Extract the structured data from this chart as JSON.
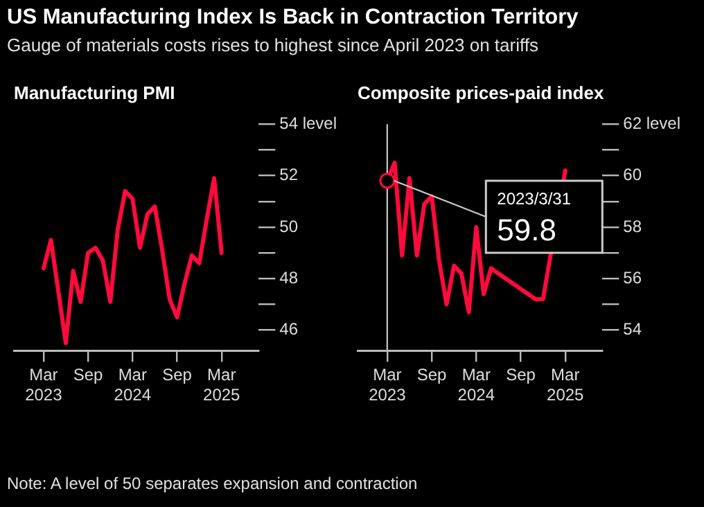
{
  "chart_data": [
    {
      "type": "other",
      "title": "US Manufacturing Index Is Back in Contraction Territory",
      "subtitle": "Gauge of materials costs rises to highest since April 2023 on tariffs"
    },
    {
      "type": "line",
      "title": "Manufacturing PMI",
      "x": [
        "2023-03",
        "2023-04",
        "2023-05",
        "2023-06",
        "2023-07",
        "2023-08",
        "2023-09",
        "2023-10",
        "2023-11",
        "2023-12",
        "2024-01",
        "2024-02",
        "2024-03",
        "2024-04",
        "2024-05",
        "2024-06",
        "2024-07",
        "2024-08",
        "2024-09",
        "2024-10",
        "2024-11",
        "2024-12",
        "2025-01",
        "2025-02",
        "2025-03"
      ],
      "series": [
        {
          "color": "#ff0a3c",
          "values": [
            48.4,
            49.5,
            47.5,
            45.5,
            48.3,
            47.1,
            49.0,
            49.2,
            48.7,
            47.1,
            49.9,
            51.4,
            51.1,
            49.2,
            50.5,
            50.8,
            49.1,
            47.2,
            46.5,
            47.8,
            48.9,
            48.6,
            50.3,
            51.9,
            49.0
          ]
        }
      ],
      "xlim": [
        "2022-11",
        "2025-08"
      ],
      "xticks": [
        {
          "value": "2023-03",
          "label": "Mar 2023"
        },
        {
          "value": "2023-09",
          "label": "Sep"
        },
        {
          "value": "2024-03",
          "label": "Mar 2024"
        },
        {
          "value": "2024-09",
          "label": "Sep"
        },
        {
          "value": "2025-03",
          "label": "Mar 2025"
        }
      ],
      "ylim": [
        45.2,
        54
      ],
      "yticks": [
        46,
        {
          "value": 47,
          "label": null
        },
        48,
        {
          "value": 49,
          "label": null
        },
        50,
        {
          "value": 51,
          "label": null
        },
        52,
        {
          "value": 53,
          "label": null
        },
        {
          "value": 54,
          "label": "54 level"
        }
      ],
      "grid": false
    },
    {
      "type": "line",
      "title": "Composite prices-paid index",
      "x": [
        "2023-03",
        "2023-04",
        "2023-05",
        "2023-06",
        "2023-07",
        "2023-08",
        "2023-09",
        "2023-10",
        "2023-11",
        "2023-12",
        "2024-01",
        "2024-02",
        "2024-03",
        "2024-04",
        "2024-05",
        "2024-06",
        "2024-07",
        "2024-08",
        "2024-09",
        "2024-10",
        "2024-11",
        "2024-12",
        "2025-01",
        "2025-02",
        "2025-03"
      ],
      "series": [
        {
          "color": "#ff0a3c",
          "values": [
            59.8,
            60.5,
            56.9,
            59.9,
            56.9,
            58.9,
            59.2,
            56.7,
            55.0,
            56.5,
            56.2,
            54.7,
            58.0,
            55.4,
            56.4,
            null,
            null,
            null,
            null,
            null,
            55.2,
            55.2,
            null,
            null,
            60.2
          ]
        }
      ],
      "xlim": [
        "2022-11",
        "2025-08"
      ],
      "xticks": [
        {
          "value": "2023-03",
          "label": "Mar 2023"
        },
        {
          "value": "2023-09",
          "label": "Sep"
        },
        {
          "value": "2024-03",
          "label": "Mar 2024"
        },
        {
          "value": "2024-09",
          "label": "Sep"
        },
        {
          "value": "2025-03",
          "label": "Mar 2025"
        }
      ],
      "ylim": [
        53.2,
        62
      ],
      "yticks": [
        54,
        {
          "value": 55,
          "label": null
        },
        56,
        {
          "value": 57,
          "label": null
        },
        58,
        {
          "value": 59,
          "label": null
        },
        60,
        {
          "value": 61,
          "label": null
        },
        {
          "value": 62,
          "label": "62 level"
        }
      ],
      "ref_lines": [
        {
          "axis": "x",
          "value": "2023-03"
        }
      ],
      "annotations": [
        {
          "text": "2023/3/31\n59.8",
          "x": "2023-03",
          "y": 59.8
        }
      ],
      "grid": false
    },
    {
      "type": "other",
      "annotations": [
        "Note: A level of 50 separates expansion and contraction"
      ]
    }
  ]
}
